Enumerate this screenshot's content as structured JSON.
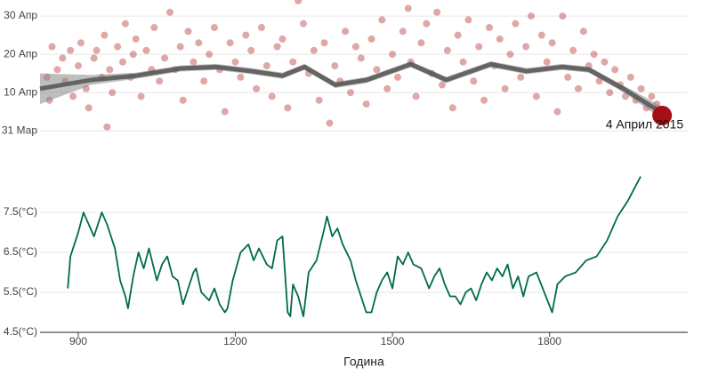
{
  "chart_data": [
    {
      "type": "scatter",
      "x": [
        840,
        845,
        850,
        860,
        870,
        875,
        885,
        890,
        900,
        905,
        915,
        920,
        930,
        935,
        945,
        950,
        955,
        960,
        965,
        975,
        985,
        990,
        1000,
        1005,
        1010,
        1020,
        1030,
        1040,
        1045,
        1055,
        1065,
        1075,
        1085,
        1095,
        1100,
        1110,
        1120,
        1130,
        1140,
        1150,
        1160,
        1170,
        1180,
        1190,
        1200,
        1210,
        1220,
        1230,
        1240,
        1250,
        1260,
        1270,
        1280,
        1290,
        1300,
        1310,
        1320,
        1330,
        1340,
        1350,
        1360,
        1370,
        1380,
        1390,
        1400,
        1410,
        1420,
        1430,
        1440,
        1450,
        1460,
        1470,
        1480,
        1490,
        1500,
        1510,
        1520,
        1530,
        1535,
        1545,
        1555,
        1565,
        1575,
        1585,
        1595,
        1605,
        1615,
        1625,
        1635,
        1645,
        1655,
        1665,
        1675,
        1685,
        1695,
        1705,
        1715,
        1725,
        1735,
        1745,
        1755,
        1765,
        1775,
        1785,
        1795,
        1805,
        1815,
        1825,
        1835,
        1845,
        1855,
        1865,
        1875,
        1885,
        1895,
        1905,
        1915,
        1925,
        1935,
        1945,
        1955,
        1965,
        1975,
        1985,
        1995,
        2005
      ],
      "values": [
        104,
        98,
        112,
        106,
        109,
        103,
        111,
        99,
        107,
        113,
        101,
        96,
        109,
        111,
        104,
        115,
        91,
        106,
        100,
        112,
        108,
        118,
        104,
        110,
        114,
        99,
        111,
        106,
        117,
        103,
        109,
        121,
        106,
        112,
        98,
        116,
        108,
        113,
        103,
        110,
        117,
        106,
        95,
        113,
        108,
        104,
        115,
        111,
        101,
        117,
        107,
        99,
        112,
        114,
        96,
        108,
        124,
        118,
        105,
        111,
        98,
        113,
        92,
        107,
        103,
        116,
        100,
        112,
        109,
        97,
        114,
        106,
        119,
        101,
        110,
        104,
        116,
        122,
        108,
        99,
        113,
        118,
        105,
        121,
        102,
        111,
        96,
        115,
        108,
        119,
        103,
        112,
        98,
        117,
        107,
        114,
        101,
        110,
        118,
        104,
        112,
        120,
        99,
        115,
        108,
        113,
        95,
        120,
        104,
        111,
        101,
        116,
        107,
        110,
        103,
        108,
        100,
        106,
        102,
        99,
        104,
        98,
        101,
        96,
        99,
        97
      ],
      "color": "#b22222",
      "smooth": {
        "color": "#555555",
        "x": [
          827,
          925,
          1010,
          1095,
          1163,
          1231,
          1290,
          1332,
          1391,
          1451,
          1535,
          1603,
          1688,
          1756,
          1824,
          1875,
          1942,
          2010
        ],
        "values": [
          101,
          103.3,
          104.4,
          106.3,
          106.7,
          105.6,
          104.4,
          106.7,
          102,
          103.3,
          107.4,
          103.3,
          107.4,
          105.6,
          106.7,
          106,
          100.9,
          95.1
        ],
        "lower": [
          97,
          102,
          103.6,
          105.5,
          105.9,
          104.8,
          103.6,
          105.9,
          101.2,
          102.5,
          106.6,
          102.5,
          106.6,
          104.8,
          105.9,
          105.2,
          100,
          93.5
        ],
        "upper": [
          105,
          104.6,
          105.2,
          107.1,
          107.5,
          106.4,
          105.2,
          107.5,
          102.8,
          104.1,
          108.2,
          104.1,
          108.2,
          106.4,
          107.5,
          106.8,
          101.8,
          96.7
        ]
      },
      "highlight": {
        "x": 2015,
        "y": 94,
        "label": "4 Април 2015",
        "color": "#a50f15"
      },
      "xlim": [
        827,
        2064
      ],
      "ylim": [
        84.7,
        124.2
      ],
      "yticks": [
        {
          "value": 90,
          "label": "31 Мар"
        },
        {
          "value": 100,
          "label": "10 Апр"
        },
        {
          "value": 110,
          "label": "20 Апр"
        },
        {
          "value": 120,
          "label": "30 Апр"
        }
      ],
      "grid": true
    },
    {
      "type": "line",
      "x_label": "Година",
      "x": [
        880,
        885,
        900,
        910,
        920,
        930,
        945,
        955,
        970,
        980,
        990,
        995,
        1005,
        1015,
        1025,
        1035,
        1050,
        1060,
        1070,
        1080,
        1090,
        1100,
        1110,
        1120,
        1125,
        1135,
        1150,
        1160,
        1170,
        1180,
        1185,
        1195,
        1210,
        1225,
        1235,
        1245,
        1260,
        1270,
        1280,
        1290,
        1300,
        1305,
        1310,
        1320,
        1330,
        1340,
        1355,
        1370,
        1375,
        1385,
        1395,
        1405,
        1420,
        1430,
        1440,
        1450,
        1460,
        1470,
        1480,
        1490,
        1500,
        1510,
        1520,
        1530,
        1540,
        1555,
        1570,
        1580,
        1590,
        1600,
        1610,
        1620,
        1630,
        1640,
        1650,
        1660,
        1670,
        1680,
        1690,
        1700,
        1710,
        1720,
        1730,
        1740,
        1750,
        1760,
        1775,
        1790,
        1805,
        1815,
        1830,
        1850,
        1870,
        1890,
        1910,
        1930,
        1950,
        1974
      ],
      "values": [
        5.6,
        6.4,
        7.0,
        7.5,
        7.2,
        6.9,
        7.5,
        7.2,
        6.6,
        5.8,
        5.4,
        5.1,
        5.9,
        6.5,
        6.1,
        6.6,
        5.8,
        6.2,
        6.4,
        5.9,
        5.8,
        5.2,
        5.6,
        6.0,
        6.1,
        5.5,
        5.3,
        5.6,
        5.2,
        5.0,
        5.1,
        5.8,
        6.5,
        6.7,
        6.3,
        6.6,
        6.2,
        6.1,
        6.8,
        6.9,
        5.0,
        4.9,
        5.7,
        5.4,
        4.9,
        6.0,
        6.3,
        7.1,
        7.4,
        6.9,
        7.1,
        6.7,
        6.3,
        5.8,
        5.4,
        5.0,
        5.0,
        5.5,
        5.8,
        6.0,
        5.6,
        6.4,
        6.2,
        6.5,
        6.2,
        6.1,
        5.6,
        5.9,
        6.1,
        5.7,
        5.4,
        5.4,
        5.2,
        5.5,
        5.6,
        5.3,
        5.7,
        6.0,
        5.8,
        6.1,
        5.9,
        6.2,
        5.6,
        5.9,
        5.4,
        5.9,
        6.0,
        5.5,
        5.0,
        5.7,
        5.9,
        6.0,
        6.3,
        6.4,
        6.8,
        7.4,
        7.8,
        8.4
      ],
      "color": "#006a4e",
      "xlim": [
        827,
        2064
      ],
      "ylim": [
        4.5,
        8.48
      ],
      "xticks": [
        900,
        1200,
        1500,
        1800
      ],
      "yticks": [
        {
          "value": 4.5,
          "label": "4.5(°C)"
        },
        {
          "value": 5.5,
          "label": "5.5(°C)"
        },
        {
          "value": 6.5,
          "label": "6.5(°C)"
        },
        {
          "value": 7.5,
          "label": "7.5(°C)"
        }
      ],
      "grid": true
    }
  ]
}
